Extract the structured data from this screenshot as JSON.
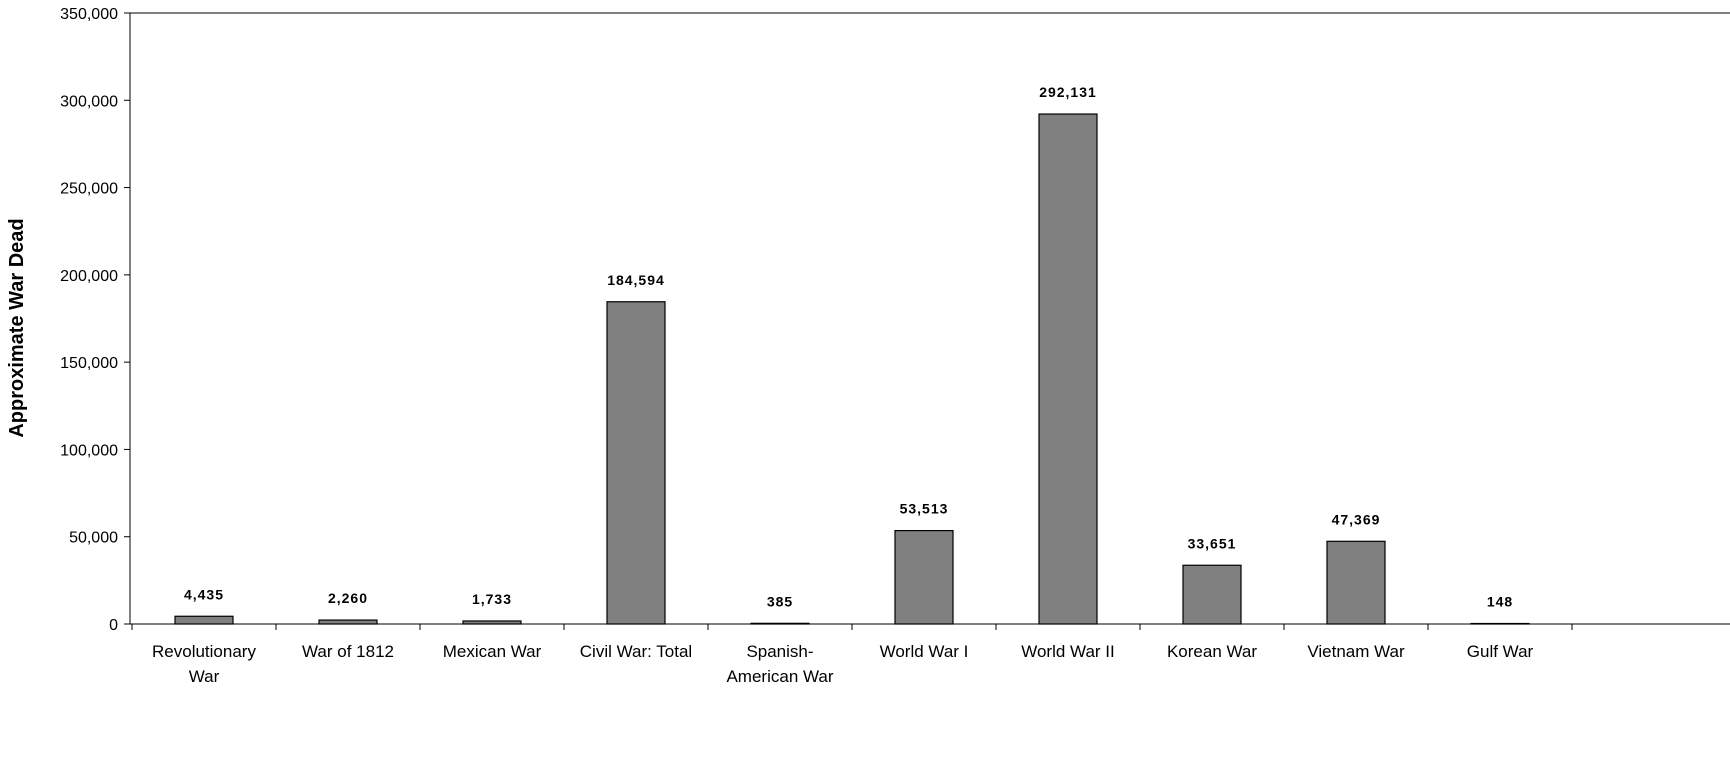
{
  "chart_data": {
    "type": "bar",
    "title": "",
    "xlabel": "",
    "ylabel": "Approximate War Dead",
    "categories": [
      [
        "Revolutionary",
        "War"
      ],
      [
        "War of 1812"
      ],
      [
        "Mexican War"
      ],
      [
        "Civil War: Total"
      ],
      [
        "Spanish-",
        "American War"
      ],
      [
        "World War I"
      ],
      [
        "World War II"
      ],
      [
        "Korean War"
      ],
      [
        "Vietnam War"
      ],
      [
        "Gulf War"
      ]
    ],
    "values": [
      4435,
      2260,
      1733,
      184594,
      385,
      53513,
      292131,
      33651,
      47369,
      148
    ],
    "data_labels": [
      "4,435",
      "2,260",
      "1,733",
      "184,594",
      "385",
      "53,513",
      "292,131",
      "33,651",
      "47,369",
      "148"
    ],
    "ylim": [
      0,
      350000
    ],
    "yticks": [
      0,
      50000,
      100000,
      150000,
      200000,
      250000,
      300000,
      350000
    ],
    "ytick_labels": [
      "0",
      "50,000",
      "100,000",
      "150,000",
      "200,000",
      "250,000",
      "300,000",
      "350,000"
    ],
    "grid": false,
    "legend": "none",
    "colors": {
      "bar_fill": "#808080",
      "bar_stroke": "#000000",
      "axis": "#000000"
    }
  }
}
